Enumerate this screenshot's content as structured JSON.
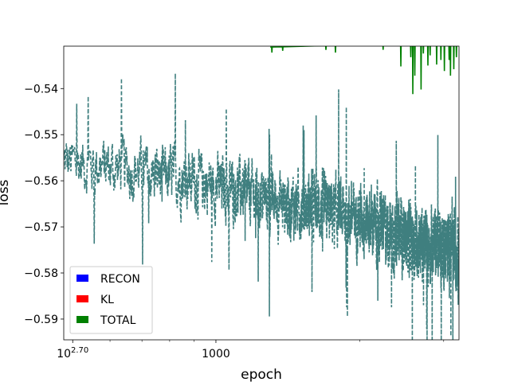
{
  "chart_data": {
    "type": "line",
    "xlabel": "epoch",
    "ylabel": "loss",
    "x_scale": "log",
    "xlim": [
      480,
      3230
    ],
    "ylim": [
      -0.5945,
      -0.5308
    ],
    "x_ticks": [
      {
        "value": 501.2,
        "label": "10",
        "sup": "2.70"
      },
      {
        "value": 1000,
        "label": "1000",
        "sup": ""
      }
    ],
    "x_minor_ticks": [
      600,
      700,
      800,
      900,
      2000,
      3000
    ],
    "y_ticks": [
      {
        "value": -0.54,
        "label": "−0.54"
      },
      {
        "value": -0.55,
        "label": "−0.55"
      },
      {
        "value": -0.56,
        "label": "−0.56"
      },
      {
        "value": -0.57,
        "label": "−0.57"
      },
      {
        "value": -0.58,
        "label": "−0.58"
      },
      {
        "value": -0.59,
        "label": "−0.59"
      }
    ],
    "legend": {
      "position": "lower-left",
      "entries": [
        {
          "label": "RECON",
          "color": "#0000ff"
        },
        {
          "label": "KL",
          "color": "#ff0000"
        },
        {
          "label": "TOTAL",
          "color": "#008000"
        }
      ]
    },
    "series": [
      {
        "color": "#3f7f7f",
        "style": "dashed",
        "x_start": 480,
        "x_end": 3230,
        "n_points": 2750,
        "trend": [
          [
            480,
            -0.556
          ],
          [
            600,
            -0.557
          ],
          [
            800,
            -0.559
          ],
          [
            1000,
            -0.561
          ],
          [
            1400,
            -0.565
          ],
          [
            2000,
            -0.568
          ],
          [
            2600,
            -0.573
          ],
          [
            3230,
            -0.575
          ]
        ],
        "spread": [
          [
            480,
            0.005
          ],
          [
            800,
            0.0055
          ],
          [
            1500,
            0.006
          ],
          [
            2600,
            0.0065
          ],
          [
            3230,
            0.007
          ]
        ]
      },
      {
        "color": "#008000",
        "style": "solid",
        "x_start": 1300,
        "x_end": 3230,
        "trend": [
          [
            1300,
            -0.531
          ],
          [
            2600,
            -0.53
          ],
          [
            3230,
            -0.53
          ]
        ],
        "dips": [
          [
            1310,
            -0.5322
          ],
          [
            1380,
            -0.5318
          ],
          [
            1700,
            -0.5316
          ],
          [
            1780,
            -0.5322
          ],
          [
            2240,
            -0.5316
          ],
          [
            2440,
            -0.5352
          ],
          [
            2560,
            -0.5332
          ],
          [
            2585,
            -0.5412
          ],
          [
            2610,
            -0.5372
          ],
          [
            2690,
            -0.5402
          ],
          [
            2720,
            -0.5324
          ],
          [
            2780,
            -0.535
          ],
          [
            2810,
            -0.5328
          ],
          [
            2900,
            -0.5348
          ],
          [
            2960,
            -0.5338
          ],
          [
            3010,
            -0.5362
          ],
          [
            3080,
            -0.5338
          ],
          [
            3100,
            -0.5372
          ],
          [
            3150,
            -0.5358
          ],
          [
            3190,
            -0.5332
          ]
        ]
      }
    ]
  }
}
